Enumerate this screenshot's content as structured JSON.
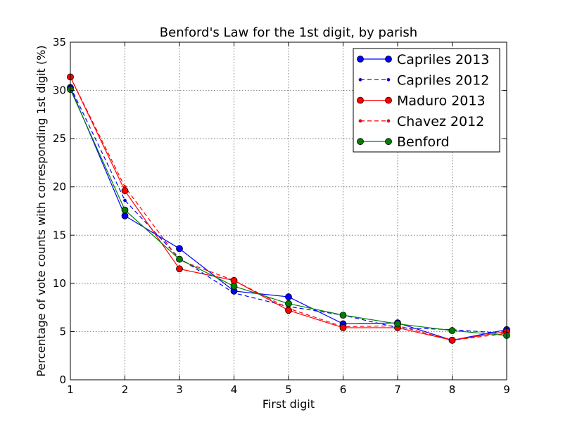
{
  "chart_data": {
    "type": "line",
    "title": "Benford's Law for the 1st digit, by parish",
    "xlabel": "First digit",
    "ylabel": "Percentage of vote counts with corresponding 1st digit (%)",
    "xlim": [
      1,
      9
    ],
    "ylim": [
      0,
      35
    ],
    "x_ticks": [
      1,
      2,
      3,
      4,
      5,
      6,
      7,
      8,
      9
    ],
    "y_ticks": [
      0,
      5,
      10,
      15,
      20,
      25,
      30,
      35
    ],
    "grid": true,
    "legend_position": "top-right",
    "x": [
      1,
      2,
      3,
      4,
      5,
      6,
      7,
      8,
      9
    ],
    "series": [
      {
        "name": "Capriles 2013",
        "color": "#0000ff",
        "style": "solid",
        "marker": "large",
        "values": [
          30.3,
          17.0,
          13.6,
          9.2,
          8.6,
          5.8,
          5.9,
          4.1,
          5.2
        ]
      },
      {
        "name": "Capriles 2012",
        "color": "#0000ff",
        "style": "dashed",
        "marker": "small",
        "values": [
          30.4,
          18.6,
          12.6,
          9.0,
          7.6,
          6.7,
          5.4,
          5.2,
          4.8
        ]
      },
      {
        "name": "Maduro 2013",
        "color": "#ff0000",
        "style": "solid",
        "marker": "large",
        "values": [
          31.4,
          19.6,
          11.5,
          10.3,
          7.2,
          5.4,
          5.4,
          4.1,
          5.0
        ]
      },
      {
        "name": "Chavez 2012",
        "color": "#ff0000",
        "style": "dashed",
        "marker": "small",
        "values": [
          31.4,
          20.0,
          12.4,
          10.3,
          7.4,
          5.5,
          5.6,
          4.1,
          4.8
        ]
      },
      {
        "name": "Benford",
        "color": "#008000",
        "style": "solid",
        "marker": "large",
        "values": [
          30.1,
          17.6,
          12.5,
          9.7,
          7.9,
          6.7,
          5.8,
          5.1,
          4.6
        ]
      }
    ]
  }
}
